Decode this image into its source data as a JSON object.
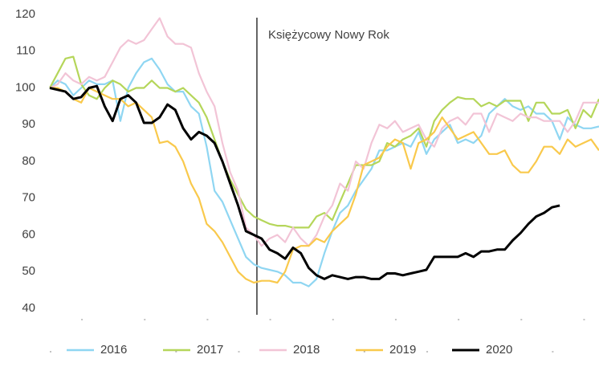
{
  "chart_data": {
    "type": "line",
    "annotation": {
      "text": "Księżycowy Nowy Rok",
      "x": 26.4
    },
    "categories": [
      null,
      null,
      null,
      null,
      null,
      null,
      null,
      null,
      null,
      null,
      null,
      null,
      null,
      null,
      null,
      null,
      null,
      null,
      null,
      null,
      null,
      null,
      null,
      null,
      null,
      null,
      null,
      null,
      null,
      null,
      null,
      null,
      null,
      null,
      null,
      null,
      null,
      null,
      null,
      null,
      null,
      null,
      null,
      null,
      null,
      null,
      null,
      null,
      null,
      null,
      null,
      null,
      null,
      null,
      null,
      null,
      null,
      null,
      null,
      null,
      null,
      null,
      null,
      null,
      null,
      null,
      null,
      null,
      null,
      null,
      null
    ],
    "series": [
      {
        "name": "2016",
        "color": "#8fd6f2",
        "values": [
          100,
          102,
          101,
          98,
          100,
          102,
          101,
          101,
          102,
          91,
          100,
          104,
          107,
          108,
          105,
          101,
          99,
          99,
          95,
          93,
          84,
          72,
          69,
          64,
          59,
          54,
          52,
          51,
          50.5,
          50,
          49,
          47,
          47,
          46,
          48,
          55,
          61,
          66,
          68,
          72,
          75,
          78,
          83,
          83,
          84,
          85,
          84,
          88,
          82,
          86,
          88,
          90,
          85,
          86,
          85,
          87,
          93,
          95,
          97,
          95,
          94,
          95,
          93,
          93,
          91,
          86,
          92,
          90,
          89,
          89,
          89.5
        ]
      },
      {
        "name": "2017",
        "color": "#b5d65a",
        "values": [
          100,
          104,
          108,
          108.5,
          101,
          98,
          97,
          100,
          102,
          101,
          99,
          100,
          100,
          102,
          100,
          100,
          99,
          100,
          98,
          96,
          92,
          86,
          80,
          75,
          71,
          67,
          65,
          64,
          63,
          62.5,
          62.5,
          62,
          62,
          62,
          65,
          66,
          64,
          69,
          74,
          79,
          79,
          79,
          80,
          85,
          84,
          86,
          87,
          89,
          84,
          91,
          94,
          96,
          97.5,
          97,
          97,
          95,
          96,
          95,
          96.5,
          96.5,
          96.5,
          91,
          96,
          96,
          93,
          93,
          94,
          89,
          94,
          92,
          97
        ]
      },
      {
        "name": "2018",
        "color": "#f2c4d6",
        "values": [
          100,
          101,
          104,
          102,
          101,
          103,
          102,
          103,
          107,
          111,
          113,
          112,
          113,
          116,
          119,
          114,
          112,
          112,
          111,
          104,
          99,
          95,
          85,
          77,
          72,
          62,
          60,
          57,
          59,
          60,
          58,
          62,
          59,
          57,
          60,
          65,
          68,
          74,
          72,
          80,
          78,
          85,
          90,
          89,
          91,
          88,
          89,
          90,
          86,
          84,
          89,
          91,
          92,
          90,
          93,
          93,
          88,
          93,
          92,
          91,
          93,
          92,
          92,
          91,
          91,
          91,
          88,
          91,
          96,
          96,
          96
        ]
      },
      {
        "name": "2019",
        "color": "#f9c94c",
        "values": [
          100,
          100,
          99,
          97,
          96,
          100,
          99,
          98,
          97,
          97,
          95,
          96,
          94,
          92,
          85,
          85.5,
          84,
          80,
          74,
          70,
          63,
          61,
          58,
          54,
          50,
          48,
          47,
          47.5,
          47.5,
          47,
          50,
          56,
          57,
          57,
          59,
          58,
          61,
          63,
          65,
          71,
          79,
          80,
          81,
          84,
          86,
          85,
          78,
          85,
          86,
          88,
          92,
          89,
          86,
          87,
          88,
          85,
          82,
          82,
          83,
          79,
          77,
          77,
          80,
          84,
          84,
          82,
          86,
          84,
          85,
          86,
          83
        ]
      },
      {
        "name": "2020",
        "color": "#000000",
        "values": [
          100,
          99.5,
          99,
          97,
          97.5,
          100,
          100.5,
          95,
          91,
          97,
          98,
          96,
          90.5,
          90.5,
          92,
          95.5,
          94,
          89,
          86,
          88,
          87,
          85,
          80,
          74,
          68,
          61,
          60,
          59,
          56,
          55,
          53.5,
          56.5,
          55,
          51,
          49,
          48,
          49,
          48.5,
          48,
          48.5,
          48.5,
          48,
          48,
          49.5,
          49.5,
          49,
          49.5,
          50,
          50.5,
          54,
          54,
          54,
          54,
          55,
          54,
          55.5,
          55.5,
          56,
          56,
          58.5,
          60.5,
          63,
          65,
          66,
          67.5,
          68,
          null,
          null,
          null,
          null,
          null
        ]
      }
    ],
    "ylim": [
      40,
      120
    ],
    "yticks": [
      40,
      50,
      60,
      70,
      80,
      90,
      100,
      110,
      120
    ],
    "grid": false,
    "legend": "bottom"
  }
}
